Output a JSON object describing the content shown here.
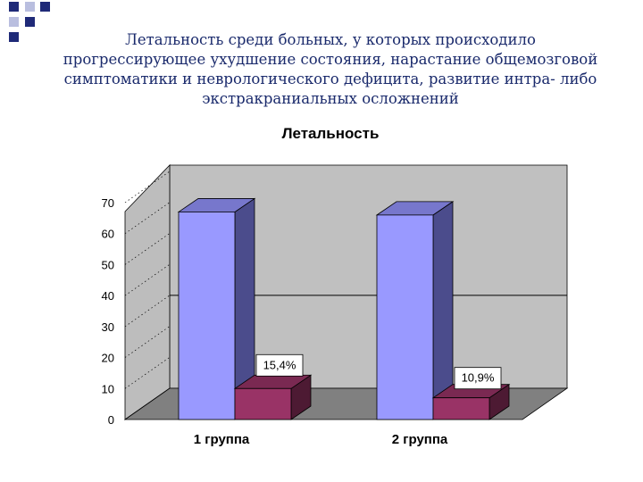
{
  "slide": {
    "title": "Летальность среди больных, у которых происходило\nпрогрессирующее ухудшение состояния, нарастание общемозговой\nсимптоматики и неврологического дефицита, развитие интра- либо\nэкстракраниальных осложнений"
  },
  "colors": {
    "series1_front": "#9999ff",
    "series1_side": "#4b4c8c",
    "series1_top": "#7777cc",
    "series2_front": "#993366",
    "series2_side": "#4d1a33",
    "series2_top": "#7a2952",
    "wall": "#c0c0c0",
    "floor": "#808080",
    "accent_dark": "#1f2a78",
    "accent_light": "#b9bedf"
  },
  "chart_data": {
    "type": "bar",
    "title": "Летальность",
    "categories": [
      "1 группа",
      "2 группа"
    ],
    "series": [
      {
        "values": [
          67,
          66
        ],
        "data_labels": [
          "",
          ""
        ]
      },
      {
        "values": [
          10,
          7
        ],
        "data_labels": [
          "15,4%",
          "10,9%"
        ]
      }
    ],
    "ylim": [
      0,
      70
    ],
    "yticks": [
      "0",
      "10",
      "20",
      "30",
      "40",
      "50",
      "60",
      "70"
    ],
    "grid": true,
    "legend": "none",
    "three_d": true
  }
}
